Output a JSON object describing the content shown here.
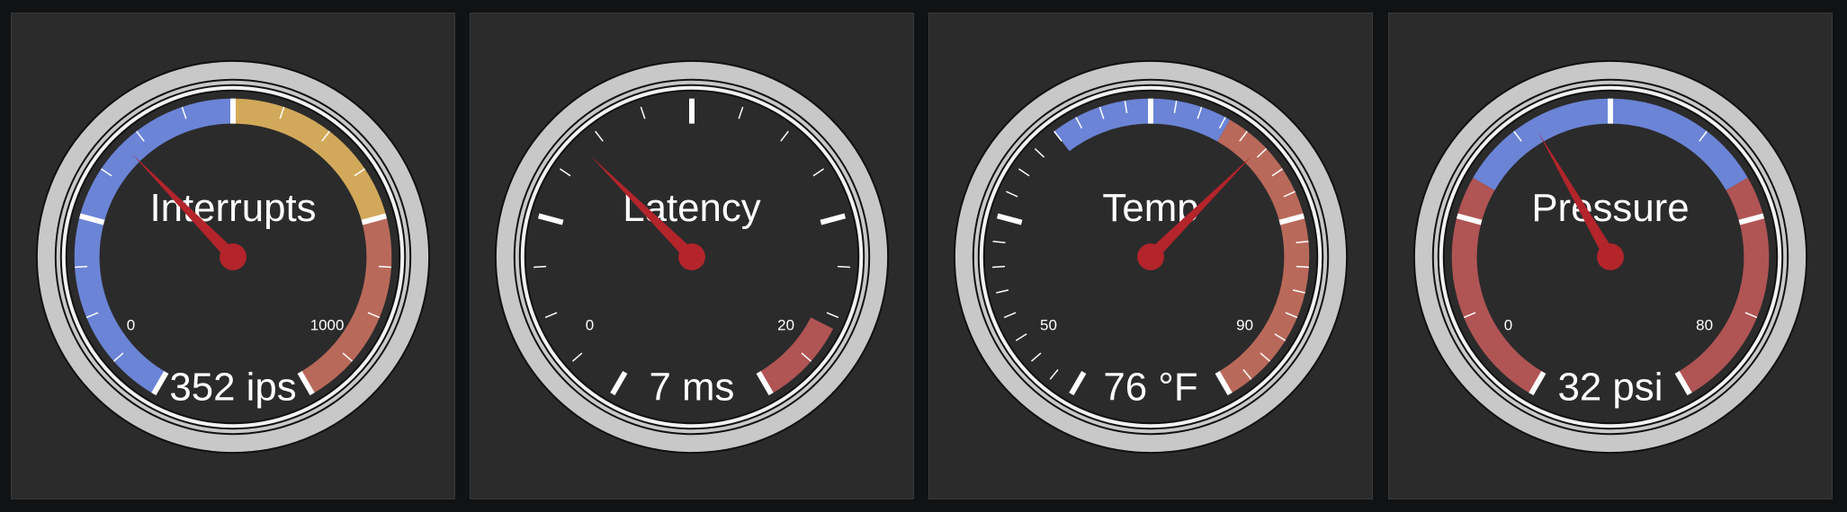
{
  "colors": {
    "background": "#111214",
    "panel": "#2b2b2b",
    "bezel": "#c8c8c8",
    "face": "#2b2b2b",
    "needle": "#b3242b",
    "blue": "#6b84d6",
    "yellow": "#d2a95a",
    "orange": "#b9695a",
    "red": "#b05454"
  },
  "gauges": [
    {
      "title": "Interrupts",
      "value": 352,
      "unit": "ips",
      "value_label": "352 ips",
      "min": 0,
      "max": 1000,
      "min_label": "0",
      "max_label": "1000",
      "major_ticks": 5,
      "minor_per_major": 4,
      "bands": [
        {
          "from": 0,
          "to": 500,
          "color": "blue"
        },
        {
          "from": 500,
          "to": 750,
          "color": "yellow"
        },
        {
          "from": 750,
          "to": 1000,
          "color": "orange"
        }
      ]
    },
    {
      "title": "Latency",
      "value": 7,
      "unit": "ms",
      "value_label": "7 ms",
      "min": 0,
      "max": 20,
      "min_label": "0",
      "max_label": "20",
      "major_ticks": 5,
      "minor_per_major": 4,
      "bands": [
        {
          "from": 17.8,
          "to": 20,
          "color": "red"
        }
      ]
    },
    {
      "title": "Temp",
      "value": 76,
      "unit": "°F",
      "value_label": "76 °F",
      "min": 50,
      "max": 90,
      "min_label": "50",
      "max_label": "90",
      "major_ticks": 5,
      "minor_per_major": 8,
      "bands": [
        {
          "from": 65,
          "to": 74,
          "color": "blue"
        },
        {
          "from": 74,
          "to": 90,
          "color": "orange"
        }
      ]
    },
    {
      "title": "Pressure",
      "value": 32,
      "unit": "psi",
      "value_label": "32 psi",
      "min": 0,
      "max": 80,
      "min_label": "0",
      "max_label": "80",
      "major_ticks": 5,
      "minor_per_major": 2,
      "bands": [
        {
          "from": 0,
          "to": 24,
          "color": "red"
        },
        {
          "from": 24,
          "to": 56,
          "color": "blue"
        },
        {
          "from": 56,
          "to": 80,
          "color": "red"
        }
      ]
    }
  ]
}
